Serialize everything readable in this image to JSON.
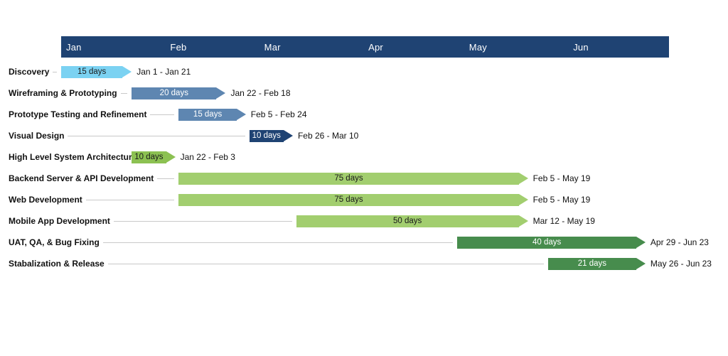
{
  "colors": {
    "header_bg": "#1f4373",
    "light_blue": "#7bd2f2",
    "steel_blue": "#5e86b1",
    "navy": "#1f4373",
    "green": "#8cc152",
    "light_green": "#a2ce6f",
    "dark_green": "#478c4d",
    "connector_line": "#c9c9c9",
    "dark_text": "#1a1a1a",
    "light_text": "#ffffff"
  },
  "chart_data": {
    "type": "gantt",
    "timeline": {
      "start": "Jan 1",
      "end": "Jun 30"
    },
    "months": [
      {
        "label": "Jan",
        "days": 31
      },
      {
        "label": "Feb",
        "days": 28
      },
      {
        "label": "Mar",
        "days": 31
      },
      {
        "label": "Apr",
        "days": 30
      },
      {
        "label": "May",
        "days": 31
      },
      {
        "label": "Jun",
        "days": 30
      }
    ],
    "tasks": [
      {
        "label": "Discovery",
        "duration": "15 days",
        "start": "Jan 1",
        "end": "Jan 21",
        "date_range": "Jan 1 - Jan 21",
        "color": "light_blue",
        "text_style": "dark"
      },
      {
        "label": "Wireframing & Prototyping",
        "duration": "20 days",
        "start": "Jan 22",
        "end": "Feb 18",
        "date_range": "Jan 22 - Feb 18",
        "color": "steel_blue",
        "text_style": "light"
      },
      {
        "label": "Prototype Testing and Refinement",
        "duration": "15 days",
        "start": "Feb 5",
        "end": "Feb 24",
        "date_range": "Feb 5 - Feb 24",
        "color": "steel_blue",
        "text_style": "light"
      },
      {
        "label": "Visual Design",
        "duration": "10 days",
        "start": "Feb 26",
        "end": "Mar 10",
        "date_range": "Feb 26 - Mar 10",
        "color": "navy",
        "text_style": "light"
      },
      {
        "label": "High Level System Architecture",
        "duration": "10 days",
        "start": "Jan 22",
        "end": "Feb 3",
        "date_range": "Jan 22 - Feb 3",
        "color": "green",
        "text_style": "dark"
      },
      {
        "label": "Backend Server & API Development",
        "duration": "75 days",
        "start": "Feb 5",
        "end": "May 19",
        "date_range": "Feb 5 - May 19",
        "color": "light_green",
        "text_style": "dark"
      },
      {
        "label": "Web Development",
        "duration": "75 days",
        "start": "Feb 5",
        "end": "May 19",
        "date_range": "Feb 5 - May 19",
        "color": "light_green",
        "text_style": "dark"
      },
      {
        "label": "Mobile App Development",
        "duration": "50 days",
        "start": "Mar 12",
        "end": "May 19",
        "date_range": "Mar 12 - May 19",
        "color": "light_green",
        "text_style": "dark"
      },
      {
        "label": "UAT, QA, & Bug Fixing",
        "duration": "40 days",
        "start": "Apr 29",
        "end": "Jun 23",
        "date_range": "Apr 29 - Jun 23",
        "color": "dark_green",
        "text_style": "light"
      },
      {
        "label": "Stabalization & Release",
        "duration": "21 days",
        "start": "May 26",
        "end": "Jun 23",
        "date_range": "May 26 - Jun 23",
        "color": "dark_green",
        "text_style": "light"
      }
    ]
  }
}
